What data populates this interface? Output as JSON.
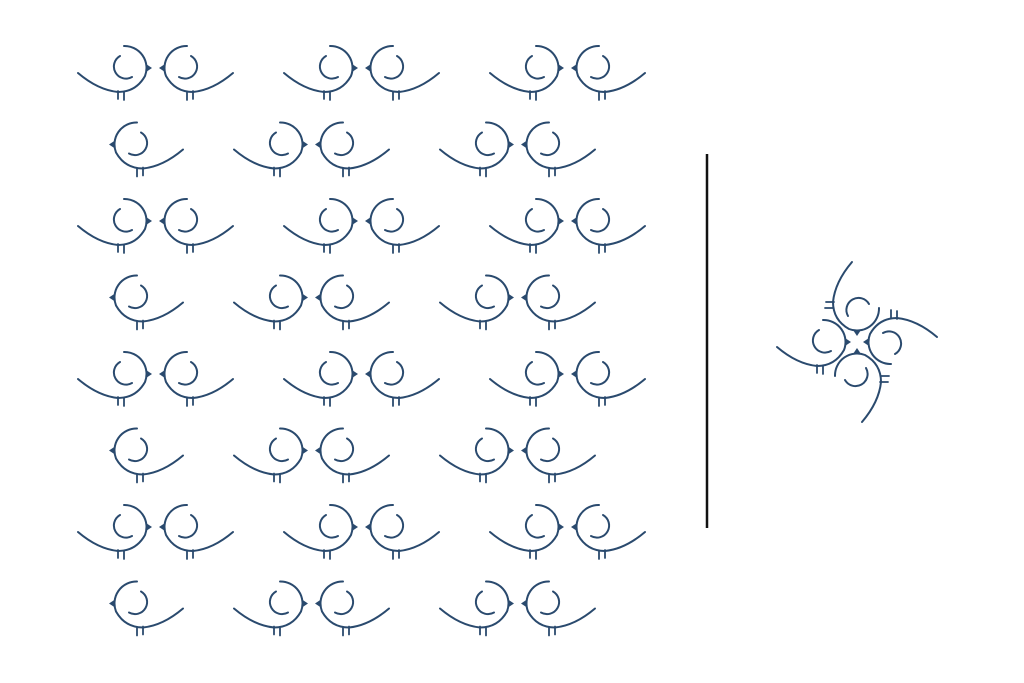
{
  "figure": {
    "background": "#ffffff",
    "ink_color": "#2a4a6e",
    "divider_color": "#111111",
    "motif": "bird-icon"
  },
  "pattern_panel": {
    "row_count": 8,
    "row_types": [
      "A",
      "B",
      "A",
      "B",
      "A",
      "B",
      "A",
      "B"
    ],
    "row_type_A": {
      "bird_count": 6,
      "facing": [
        "right",
        "left",
        "right",
        "left",
        "right",
        "left"
      ]
    },
    "row_type_B": {
      "bird_count": 5,
      "facing": [
        "left",
        "right",
        "left",
        "right",
        "left"
      ]
    }
  },
  "rosette_panel": {
    "bird_count": 4,
    "orientations": [
      "up",
      "right",
      "down",
      "left"
    ]
  }
}
